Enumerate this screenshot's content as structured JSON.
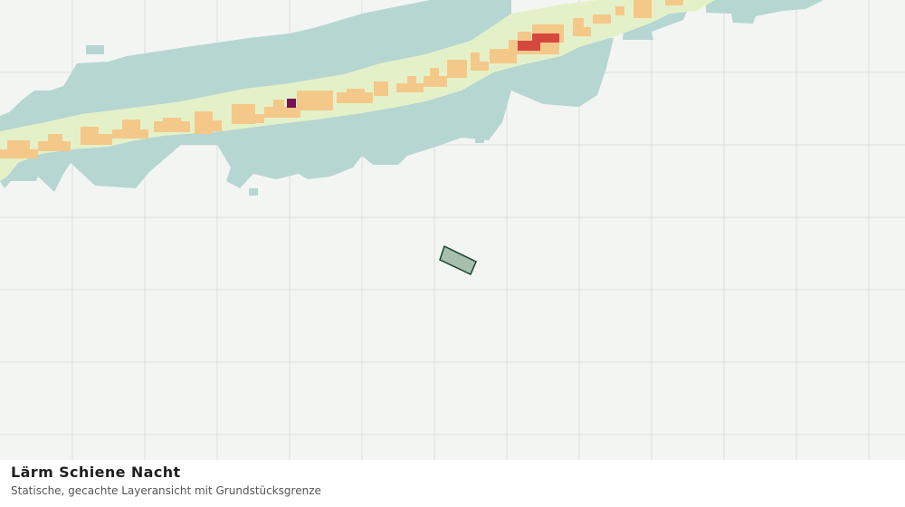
{
  "caption": {
    "title": "Lärm Schiene Nacht",
    "subtitle": "Statische, gecachte Layeransicht mit Grundstücksgrenze"
  }
}
